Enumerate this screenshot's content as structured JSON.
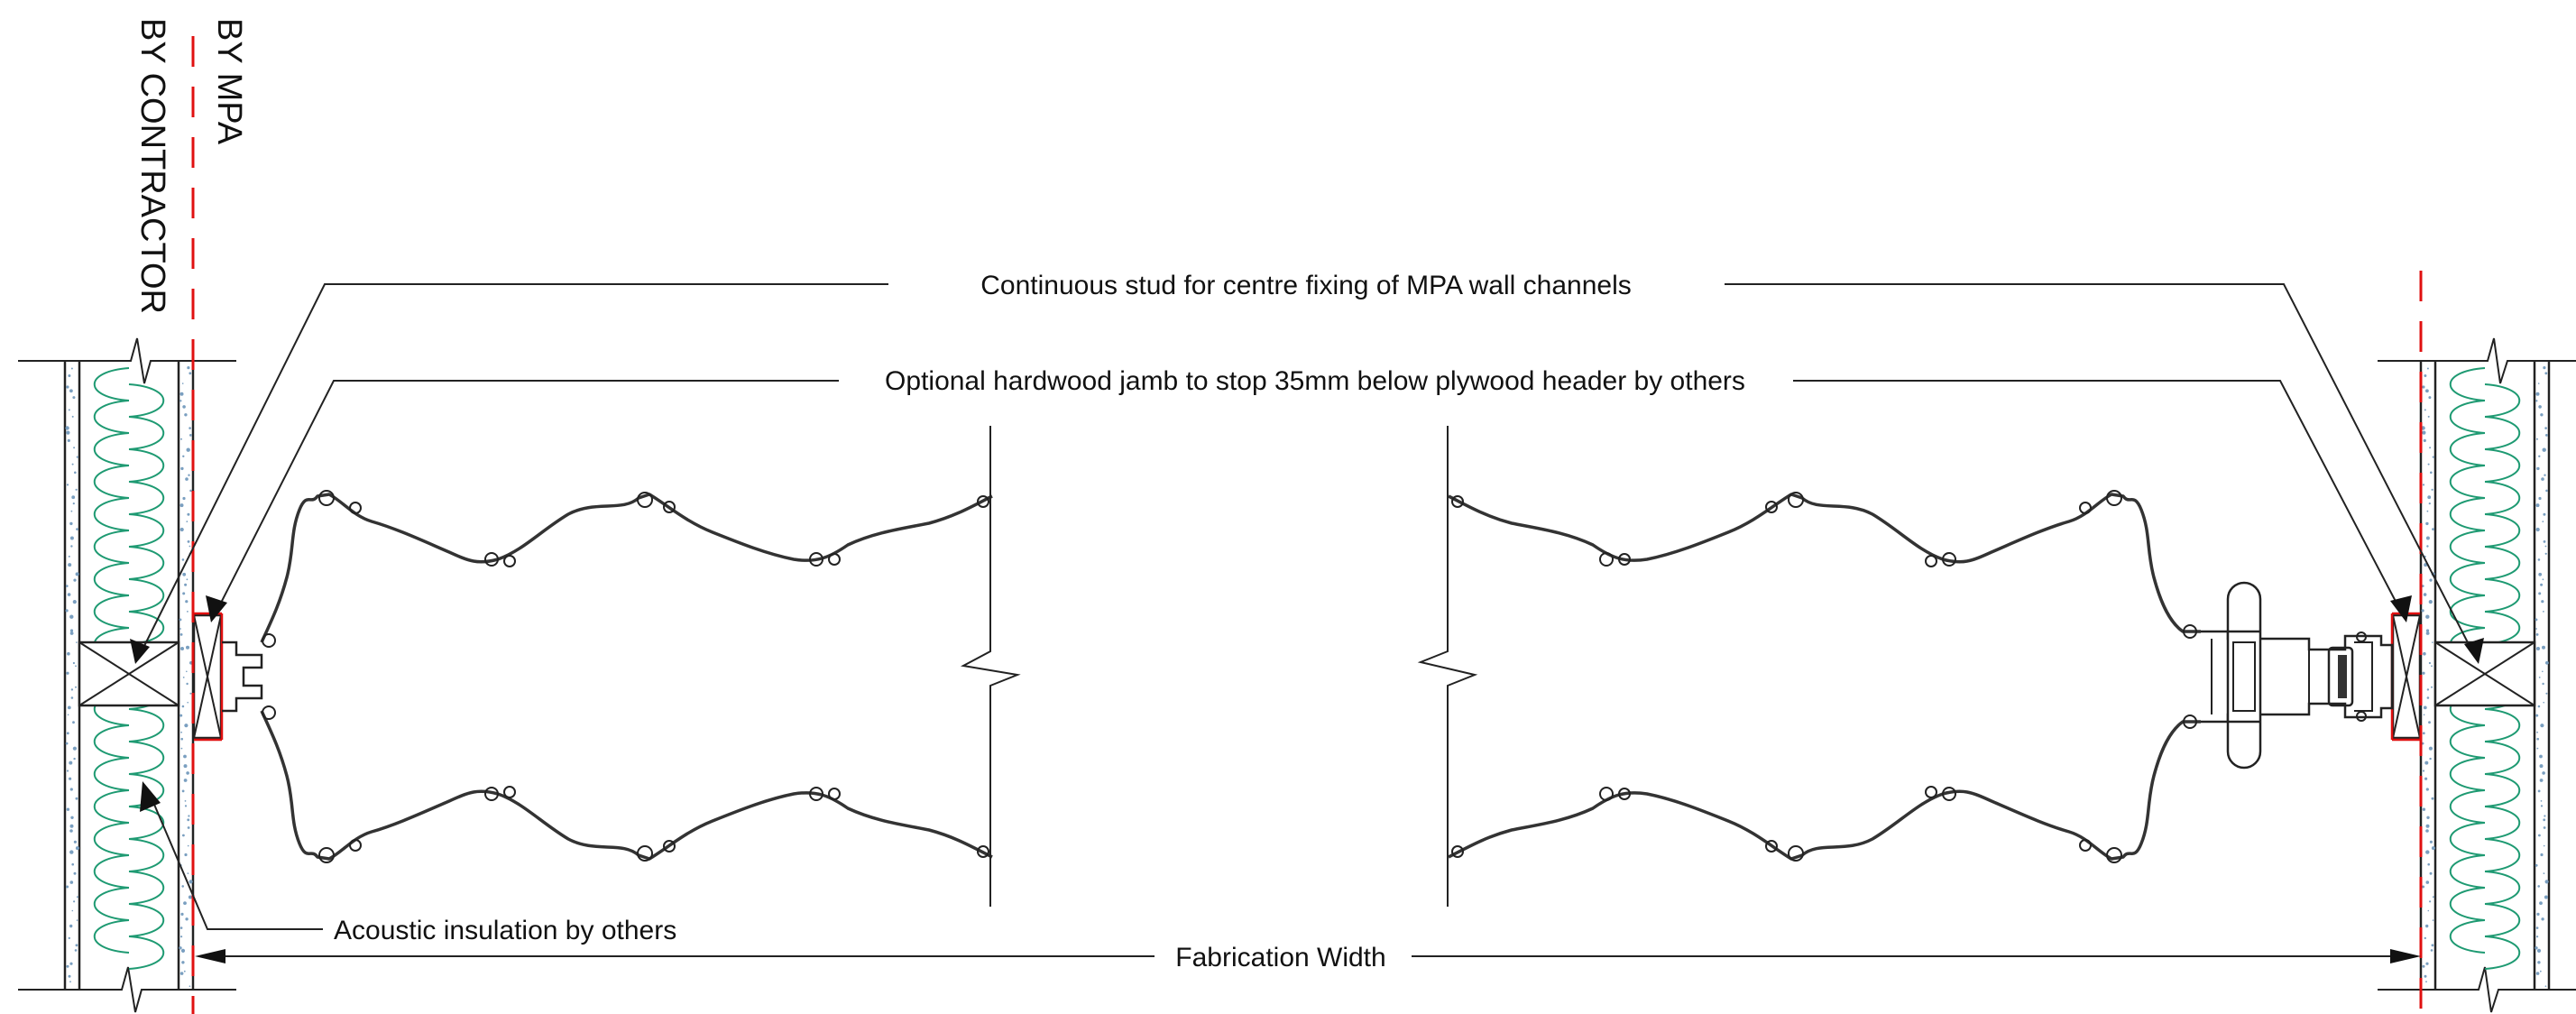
{
  "labels": {
    "by_mpa": "BY MPA",
    "by_contractor": "BY CONTRACTOR",
    "continuous_stud": "Continuous stud for centre fixing of MPA wall channels",
    "hardwood_jamb": "Optional hardwood jamb to stop 35mm below plywood header by others",
    "acoustic_insulation": "Acoustic insulation by others",
    "fabrication_width": "Fabrication Width"
  },
  "colors": {
    "line": "#222222",
    "boundary": "#e01010",
    "insulation": "#1e9a72",
    "plaster_speckle": "#7a9fc0"
  }
}
